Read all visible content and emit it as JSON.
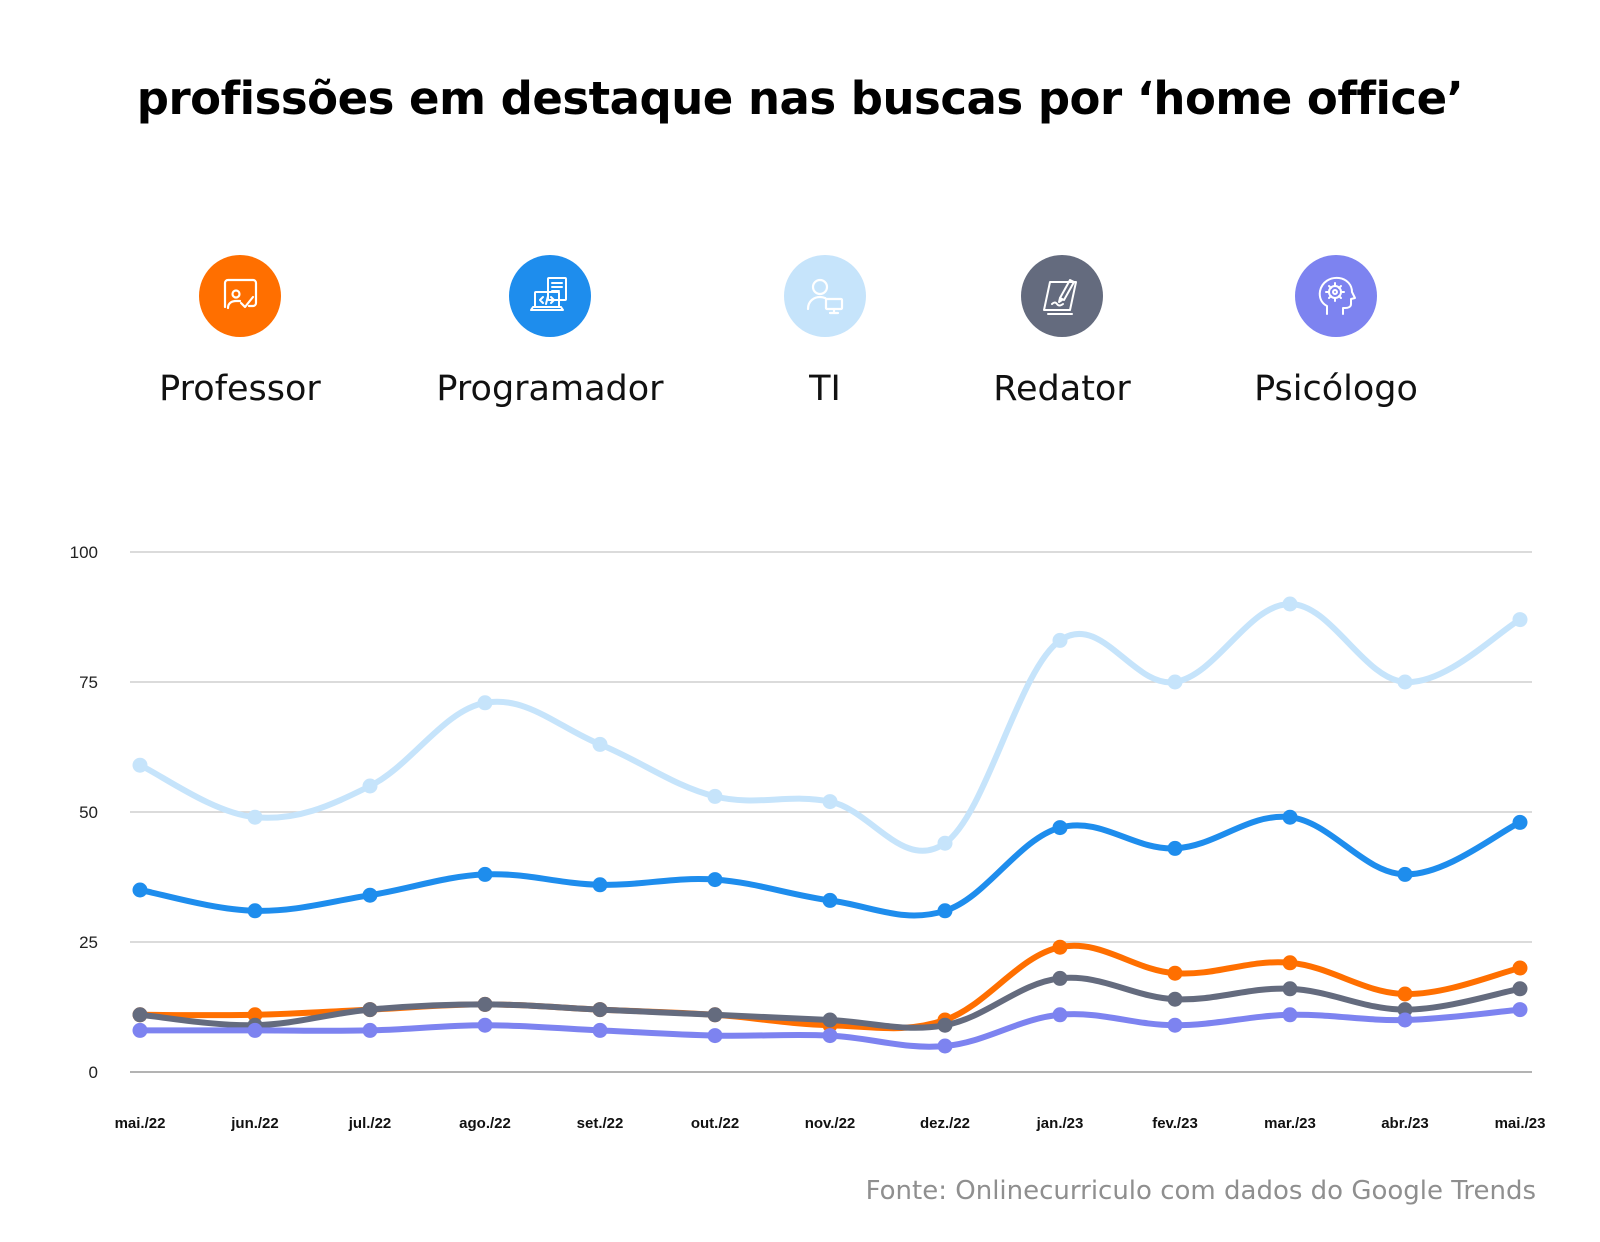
{
  "header": {
    "title": "profissões em destaque nas buscas por ‘home office’"
  },
  "legend": [
    {
      "label": "Professor",
      "color": "#ff6f00",
      "icon": "teacher-board-icon"
    },
    {
      "label": "Programador",
      "color": "#1e8ded",
      "icon": "laptop-code-icon"
    },
    {
      "label": "TI",
      "color": "#c6e4fb",
      "icon": "user-computer-icon"
    },
    {
      "label": "Redator",
      "color": "#646b7e",
      "icon": "writing-hand-icon"
    },
    {
      "label": "Psicólogo",
      "color": "#7d83f0",
      "icon": "head-brain-icon"
    }
  ],
  "chart_data": {
    "type": "line",
    "categories": [
      "mai./22",
      "jun./22",
      "jul./22",
      "ago./22",
      "set./22",
      "out./22",
      "nov./22",
      "dez./22",
      "jan./23",
      "fev./23",
      "mar./23",
      "abr./23",
      "mai./23"
    ],
    "ylim": [
      0,
      100
    ],
    "yticks": [
      "0",
      "25",
      "50",
      "75",
      "100"
    ],
    "grid": true,
    "smooth": true,
    "series": [
      {
        "name": "TI",
        "color": "#c6e4fb",
        "values": [
          59,
          49,
          55,
          71,
          63,
          53,
          52,
          44,
          83,
          75,
          90,
          75,
          87
        ]
      },
      {
        "name": "Programador",
        "color": "#1e8ded",
        "values": [
          35,
          31,
          34,
          38,
          36,
          37,
          33,
          31,
          47,
          43,
          49,
          38,
          48
        ]
      },
      {
        "name": "Professor",
        "color": "#ff6f00",
        "values": [
          11,
          11,
          12,
          13,
          12,
          11,
          9,
          10,
          24,
          19,
          21,
          15,
          20
        ]
      },
      {
        "name": "Redator",
        "color": "#646b7e",
        "values": [
          11,
          9,
          12,
          13,
          12,
          11,
          10,
          9,
          18,
          14,
          16,
          12,
          16
        ]
      },
      {
        "name": "Psicólogo",
        "color": "#7d83f0",
        "values": [
          8,
          8,
          8,
          9,
          8,
          7,
          7,
          5,
          11,
          9,
          11,
          10,
          12
        ]
      }
    ]
  },
  "footer": {
    "source": "Fonte: Onlinecurriculo com dados do Google Trends"
  }
}
